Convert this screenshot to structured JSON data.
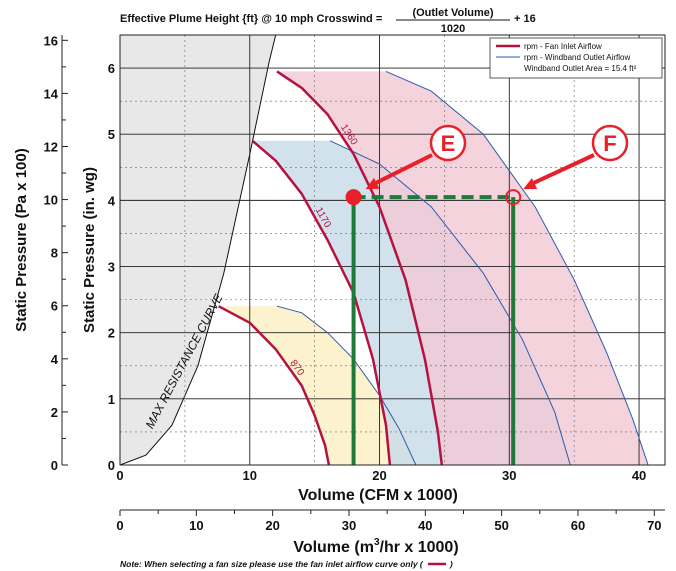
{
  "chart_data": {
    "type": "line",
    "formula": {
      "prefix": "Effective Plume Height {ft} @ 10 mph Crosswind =",
      "numerator": "(Outlet Volume)",
      "denominator": "1020",
      "suffix": "+ 16"
    },
    "x_primary": {
      "label": "Volume (CFM x 1000)",
      "range": [
        0,
        42
      ],
      "ticks": [
        "0",
        "10",
        "20",
        "30",
        "40"
      ]
    },
    "x_secondary": {
      "label_prefix": "Volume (m",
      "label_sup": "3",
      "label_suffix": "/hr x 1000)",
      "range": [
        0,
        71.4
      ],
      "ticks": [
        "0",
        "10",
        "20",
        "30",
        "40",
        "50",
        "60",
        "70"
      ]
    },
    "y_inner": {
      "label": "Static Pressure (in. wg)",
      "range": [
        0,
        6.5
      ],
      "ticks": [
        "0",
        "1",
        "2",
        "3",
        "4",
        "5",
        "6"
      ]
    },
    "y_outer": {
      "label": "Static Pressure (Pa x 100)",
      "range": [
        0,
        16.2
      ],
      "ticks": [
        "0",
        "2",
        "4",
        "6",
        "8",
        "10",
        "12",
        "14",
        "16"
      ]
    },
    "legend": [
      {
        "name": "rpm - Fan Inlet Airflow",
        "color": "#b5123f"
      },
      {
        "name": "rpm - Windband Outlet Airflow",
        "color": "#2a5cab"
      }
    ],
    "legend_note": "Windband Outlet Area = 15.4 ft²",
    "max_resistance_label": "MAX RESISTANCE CURVE",
    "max_resistance_curve": [
      [
        0,
        0
      ],
      [
        2,
        0.15
      ],
      [
        4,
        0.6
      ],
      [
        6,
        1.5
      ],
      [
        8,
        2.9
      ],
      [
        10,
        4.7
      ],
      [
        11.5,
        6.1
      ],
      [
        12,
        6.5
      ]
    ],
    "fan_curves": [
      {
        "rpm": "870",
        "fill": "#fbf0c2",
        "inlet": [
          [
            7.6,
            2.4
          ],
          [
            10,
            2.15
          ],
          [
            12,
            1.75
          ],
          [
            14,
            1.2
          ],
          [
            15,
            0.75
          ],
          [
            15.8,
            0.3
          ],
          [
            16.1,
            0
          ]
        ],
        "outlet": [
          [
            12.1,
            2.4
          ],
          [
            14,
            2.3
          ],
          [
            16,
            2.0
          ],
          [
            18,
            1.6
          ],
          [
            20,
            1.05
          ],
          [
            21.5,
            0.55
          ],
          [
            22.8,
            0
          ]
        ]
      },
      {
        "rpm": "1170",
        "fill": "#c7dbe9",
        "inlet": [
          [
            10.2,
            4.9
          ],
          [
            12,
            4.6
          ],
          [
            14,
            4.1
          ],
          [
            16,
            3.4
          ],
          [
            18,
            2.6
          ],
          [
            19.5,
            1.6
          ],
          [
            20.5,
            0.6
          ],
          [
            20.8,
            0
          ]
        ],
        "outlet": [
          [
            16.2,
            4.9
          ],
          [
            20,
            4.55
          ],
          [
            24,
            3.9
          ],
          [
            28,
            2.9
          ],
          [
            31,
            1.9
          ],
          [
            33.5,
            0.8
          ],
          [
            34.7,
            0
          ]
        ]
      },
      {
        "rpm": "1360",
        "fill": "#f2c8d4",
        "inlet": [
          [
            12.1,
            5.95
          ],
          [
            14,
            5.7
          ],
          [
            16,
            5.3
          ],
          [
            18,
            4.7
          ],
          [
            20,
            3.9
          ],
          [
            22,
            2.8
          ],
          [
            23.5,
            1.6
          ],
          [
            24.5,
            0.5
          ],
          [
            24.8,
            0
          ]
        ],
        "outlet": [
          [
            20.5,
            5.95
          ],
          [
            24,
            5.65
          ],
          [
            28,
            5.0
          ],
          [
            32,
            3.9
          ],
          [
            35,
            2.8
          ],
          [
            37.5,
            1.7
          ],
          [
            39.5,
            0.7
          ],
          [
            40.7,
            0
          ]
        ]
      }
    ],
    "operating_line": {
      "y": 4.05,
      "x_inlet": 18.0,
      "x_outlet": 30.3,
      "color": "#1f7a3a"
    },
    "markers": [
      {
        "label": "E",
        "x": 18.0,
        "y": 4.05
      },
      {
        "label": "F",
        "x": 30.3,
        "y": 4.05
      }
    ],
    "marker_color": "#e8202a",
    "grid": true
  },
  "footnote": "Note: When selecting a fan size please use the fan inlet airflow curve only (",
  "footnote_close": ")"
}
